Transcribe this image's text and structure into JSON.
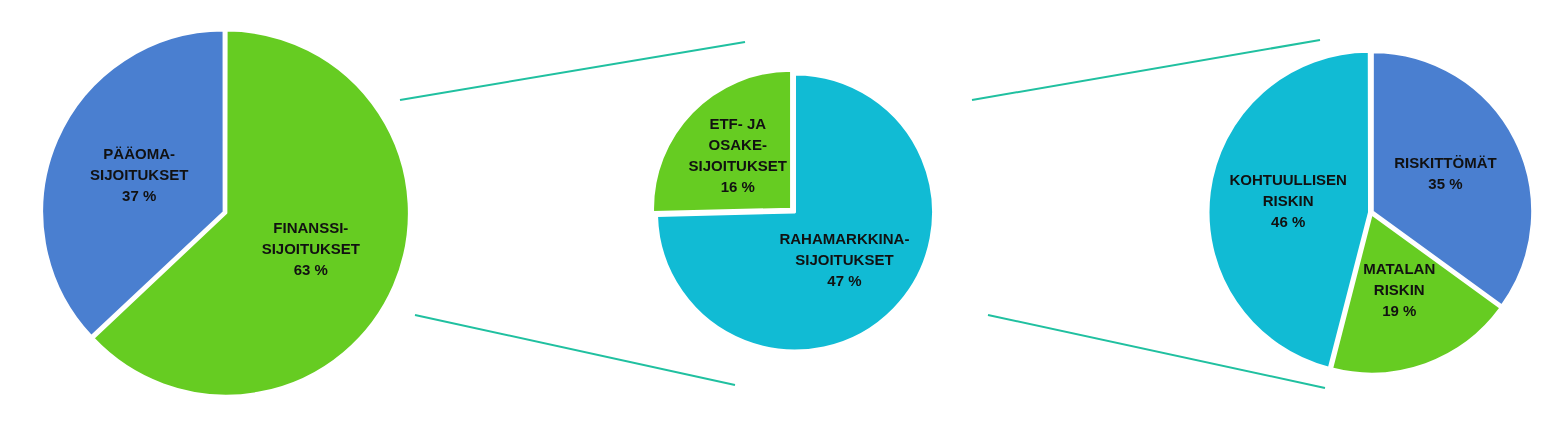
{
  "chart_data": [
    {
      "type": "pie",
      "categories": [
        "FINANSSI-SIJOITUKSET",
        "PÄÄOMA-SIJOITUKSET"
      ],
      "values": [
        63,
        37
      ],
      "colors": [
        "#66cc22",
        "#4a7fd0"
      ],
      "value_labels": [
        "63 %",
        "37 %"
      ],
      "legend": false
    },
    {
      "type": "pie",
      "categories": [
        "RAHAMARKKINA-SIJOITUKSET",
        "ETF- JA OSAKE-SIJOITUKSET"
      ],
      "values": [
        47,
        16
      ],
      "colors": [
        "#11bbd4",
        "#66cc22"
      ],
      "value_labels": [
        "47 %",
        "16 %"
      ],
      "legend": false
    },
    {
      "type": "pie",
      "categories": [
        "RISKITTÖMÄT",
        "MATALAN RISKIN",
        "KOHTUULLISEN RISKIN"
      ],
      "values": [
        35,
        19,
        46
      ],
      "colors": [
        "#4a7fd0",
        "#66cc22",
        "#11bbd4"
      ],
      "value_labels": [
        "35 %",
        "19 %",
        "46 %"
      ],
      "legend": false
    }
  ]
}
